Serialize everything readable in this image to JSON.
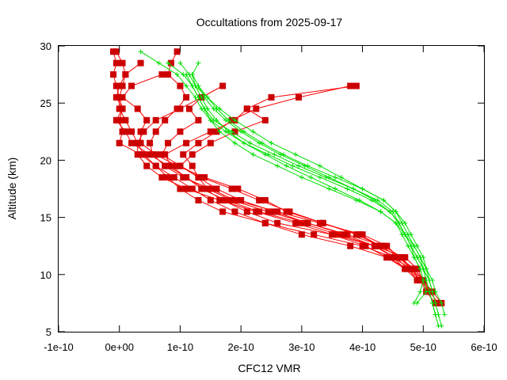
{
  "chart_data": {
    "type": "line",
    "title": "Occultations from 2025-09-17",
    "xlabel": "CFC12 VMR",
    "ylabel": "Altitude (km)",
    "xlim": [
      -1e-10,
      6e-10
    ],
    "ylim": [
      5,
      30
    ],
    "x_ticks": [
      -1e-10,
      0,
      1e-10,
      2e-10,
      3e-10,
      4e-10,
      5e-10,
      6e-10
    ],
    "x_tick_labels": [
      "-1e-10",
      "0e+00",
      "1e-10",
      "2e-10",
      "3e-10",
      "4e-10",
      "5e-10",
      "6e-10"
    ],
    "y_ticks": [
      5,
      10,
      15,
      20,
      25,
      30
    ],
    "y_tick_labels": [
      "5",
      "10",
      "15",
      "20",
      "25",
      "30"
    ],
    "grid": false,
    "legend": "none",
    "colors": {
      "measured": "#ff0000",
      "measured_marker": "#cc0000",
      "model": "#00e000"
    },
    "series": [
      {
        "style": "measured",
        "y": [
          29.5,
          28.5,
          27.5,
          26.5,
          25.5,
          24.5,
          23.5,
          22.5,
          21.5,
          20.5,
          19.5,
          18.5,
          17.5,
          16.5,
          15.5,
          14.5,
          13.5,
          12.5,
          11.5,
          10.5,
          9.5,
          8.5
        ],
        "x": [
          -5e-12,
          5e-12,
          1e-11,
          5e-12,
          0.0,
          0.0,
          1e-11,
          2e-11,
          3e-11,
          4e-11,
          6e-11,
          8e-11,
          1e-10,
          1.3e-10,
          1.7e-10,
          2.4e-10,
          3.2e-10,
          4e-10,
          4.5e-10,
          4.8e-10,
          4.95e-10,
          5.1e-10
        ]
      },
      {
        "style": "measured",
        "y": [
          29.5,
          28.5,
          27.5,
          26.5,
          25.5,
          24.5,
          23.5,
          22.5,
          21.5,
          20.5,
          19.5,
          18.5,
          17.5,
          16.5,
          15.5,
          14.5,
          13.5,
          12.5,
          11.5,
          10.5,
          9.5,
          8.5,
          7.5
        ],
        "x": [
          -1e-11,
          -5e-12,
          -1e-11,
          -5e-12,
          0.0,
          5e-12,
          -5e-12,
          1e-11,
          2e-11,
          5e-11,
          8e-11,
          1.1e-10,
          1.4e-10,
          1.7e-10,
          2.1e-10,
          2.6e-10,
          3.5e-10,
          4.2e-10,
          4.7e-10,
          4.9e-10,
          5e-10,
          5.15e-10,
          5.3e-10
        ]
      },
      {
        "style": "measured",
        "y": [
          28.5,
          27.5,
          26.5,
          25.5,
          24.5,
          23.5,
          22.5,
          21.5,
          20.5,
          19.5,
          18.5,
          17.5,
          16.5,
          15.5,
          14.5,
          13.5,
          12.5,
          11.5,
          10.5,
          9.5,
          8.5,
          7.5
        ],
        "x": [
          3.5e-11,
          1e-11,
          0.0,
          -5e-12,
          5e-12,
          0.0,
          5e-12,
          0.0,
          3.5e-11,
          6e-11,
          9e-11,
          1.2e-10,
          1.5e-10,
          1.9e-10,
          2.4e-10,
          3e-10,
          3.8e-10,
          4.4e-10,
          4.75e-10,
          4.95e-10,
          5.05e-10,
          5.2e-10
        ]
      },
      {
        "style": "measured",
        "y": [
          29.5,
          28.5,
          27.5,
          26.5,
          25.5,
          24.5,
          23.5,
          22.5,
          21.5,
          20.5,
          19.5,
          18.5,
          17.5,
          16.5,
          15.5,
          14.5,
          13.5,
          12.5,
          11.5,
          10.5,
          9.5,
          8.5,
          7.5
        ],
        "x": [
          9.5e-11,
          8.5e-11,
          8e-11,
          1e-10,
          1.1e-10,
          9.5e-11,
          7.5e-11,
          6e-11,
          5e-11,
          5.5e-11,
          7.5e-11,
          1.05e-10,
          1.5e-10,
          1.9e-10,
          2.6e-10,
          3.3e-10,
          4e-10,
          4.4e-10,
          4.6e-10,
          4.85e-10,
          5e-10,
          5.1e-10,
          5.25e-10
        ]
      },
      {
        "style": "measured",
        "y": [
          26.5,
          25.5,
          24.5,
          23.5,
          22.5,
          21.5,
          20.5,
          19.5,
          18.5,
          17.5,
          16.5,
          15.5,
          14.5,
          13.5,
          12.5,
          11.5,
          10.5,
          9.5
        ],
        "x": [
          3.9e-10,
          2.5e-10,
          2.1e-10,
          1.9e-10,
          1.5e-10,
          1.1e-10,
          7.5e-11,
          8.5e-11,
          1.1e-10,
          1.35e-10,
          1.75e-10,
          2.3e-10,
          3e-10,
          3.6e-10,
          4.2e-10,
          4.55e-10,
          4.75e-10,
          4.9e-10
        ]
      },
      {
        "style": "measured",
        "y": [
          26.5,
          25.5,
          24.5,
          23.5,
          22.5,
          21.5,
          20.5,
          19.5,
          18.5,
          17.5,
          16.5,
          15.5,
          14.5,
          13.5,
          12.5,
          11.5,
          10.5,
          9.5
        ],
        "x": [
          3.8e-10,
          2.95e-10,
          2.25e-10,
          1.85e-10,
          1.6e-10,
          1.3e-10,
          1.05e-10,
          1.2e-10,
          1.3e-10,
          1.45e-10,
          1.85e-10,
          2.45e-10,
          3.1e-10,
          3.75e-10,
          4.35e-10,
          4.65e-10,
          4.8e-10,
          5e-10
        ]
      },
      {
        "style": "measured",
        "y": [
          26.5,
          25.5,
          24.5,
          23.5,
          22.5,
          21.5,
          20.5,
          19.5,
          18.5,
          17.5,
          16.5,
          15.5,
          14.5,
          13.5,
          12.5,
          11.5,
          10.5
        ],
        "x": [
          1.7e-10,
          1.35e-10,
          1e-10,
          6e-11,
          4e-11,
          3e-11,
          3e-11,
          4.5e-11,
          7e-11,
          1.1e-10,
          1.65e-10,
          2.25e-10,
          2.9e-10,
          3.5e-10,
          4.05e-10,
          4.4e-10,
          4.7e-10
        ]
      },
      {
        "style": "measured",
        "y": [
          27.5,
          26.5,
          25.5,
          24.5,
          23.5,
          22.5,
          21.5,
          20.5,
          19.5,
          18.5,
          17.5,
          16.5,
          15.5,
          14.5,
          13.5,
          12.5,
          11.5,
          10.5,
          9.5
        ],
        "x": [
          7e-11,
          2e-11,
          5e-12,
          3e-11,
          4.5e-11,
          3.5e-11,
          3.5e-11,
          6e-11,
          9.5e-11,
          1.4e-10,
          1.95e-10,
          2.4e-10,
          2.75e-10,
          3.35e-10,
          3.9e-10,
          4.3e-10,
          4.6e-10,
          4.85e-10,
          5e-10
        ]
      },
      {
        "style": "measured",
        "y": [
          24.5,
          23.5,
          22.5,
          21.5,
          20.5,
          19.5,
          18.5,
          17.5,
          16.5,
          15.5,
          14.5,
          13.5,
          12.5,
          11.5,
          10.5,
          9.5
        ],
        "x": [
          2.1e-10,
          2.4e-10,
          1.9e-10,
          1.5e-10,
          1.2e-10,
          1e-10,
          1.3e-10,
          1.6e-10,
          2e-10,
          2.55e-10,
          3.1e-10,
          3.7e-10,
          4.2e-10,
          4.5e-10,
          4.7e-10,
          4.9e-10
        ]
      },
      {
        "style": "measured",
        "y": [
          25.5,
          24.5,
          23.5,
          22.5,
          21.5,
          20.5,
          19.5,
          18.5,
          17.5,
          16.5,
          15.5,
          14.5,
          13.5,
          12.5,
          11.5,
          10.5,
          9.5,
          8.5
        ],
        "x": [
          1.35e-10,
          1.15e-10,
          1.3e-10,
          1e-10,
          8e-11,
          7e-11,
          1e-10,
          1.35e-10,
          1.85e-10,
          2.3e-10,
          2.8e-10,
          3.35e-10,
          3.95e-10,
          4.3e-10,
          4.6e-10,
          4.8e-10,
          4.95e-10,
          5.15e-10
        ]
      },
      {
        "style": "model",
        "y": [
          29.5,
          28.5,
          27.5,
          26.5,
          25.5,
          24.5,
          23.5,
          22.5,
          21.5,
          20.5,
          19.5,
          18.5,
          17.5,
          16.5,
          15.5,
          14.5,
          13.5,
          12.5,
          11.5,
          10.5,
          9.5,
          8.5,
          7.5,
          6.5,
          5.5
        ],
        "x": [
          3.5e-11,
          6.5e-11,
          9.5e-11,
          1.1e-10,
          1.25e-10,
          1.35e-10,
          1.5e-10,
          1.75e-10,
          2.05e-10,
          2.45e-10,
          2.85e-10,
          3.3e-10,
          3.75e-10,
          4.15e-10,
          4.45e-10,
          4.6e-10,
          4.7e-10,
          4.8e-10,
          4.9e-10,
          5e-10,
          5.05e-10,
          5.1e-10,
          5.15e-10,
          5.2e-10,
          5.25e-10
        ]
      },
      {
        "style": "model",
        "y": [
          28.5,
          27.5,
          26.5,
          25.5,
          24.5,
          23.5,
          22.5,
          21.5,
          20.5,
          19.5,
          18.5,
          17.5,
          16.5,
          15.5,
          14.5,
          13.5,
          12.5,
          11.5,
          10.5,
          9.5,
          8.5,
          7.5,
          6.5
        ],
        "x": [
          8e-11,
          1.05e-10,
          1.2e-10,
          1.3e-10,
          1.4e-10,
          1.55e-10,
          1.85e-10,
          2.15e-10,
          2.55e-10,
          2.95e-10,
          3.4e-10,
          3.85e-10,
          4.25e-10,
          4.5e-10,
          4.6e-10,
          4.7e-10,
          4.85e-10,
          4.95e-10,
          5.05e-10,
          5.15e-10,
          5.2e-10,
          5.3e-10,
          5.35e-10
        ]
      },
      {
        "style": "model",
        "y": [
          28.5,
          27.5,
          26.5,
          25.5,
          24.5,
          23.5,
          22.5,
          21.5,
          20.5,
          19.5,
          18.5,
          17.5,
          16.5,
          15.5,
          14.5,
          13.5,
          12.5,
          11.5,
          10.5,
          9.5,
          8.5,
          7.5,
          6.5
        ],
        "x": [
          1e-10,
          1.15e-10,
          1.25e-10,
          1.45e-10,
          1.65e-10,
          1.9e-10,
          2.2e-10,
          2.5e-10,
          2.9e-10,
          3.3e-10,
          3.65e-10,
          4e-10,
          4.35e-10,
          4.55e-10,
          4.65e-10,
          4.75e-10,
          4.85e-10,
          4.95e-10,
          5e-10,
          5.05e-10,
          5.1e-10,
          5.15e-10,
          5.2e-10
        ]
      },
      {
        "style": "model",
        "y": [
          27.5,
          26.5,
          25.5,
          24.5,
          23.5,
          22.5,
          21.5,
          20.5,
          19.5,
          18.5,
          17.5,
          16.5,
          15.5,
          14.5,
          13.5,
          12.5,
          11.5,
          10.5,
          9.5,
          8.5,
          7.5
        ],
        "x": [
          1.2e-10,
          1.25e-10,
          1.35e-10,
          1.45e-10,
          1.6e-10,
          1.8e-10,
          2.05e-10,
          2.4e-10,
          2.75e-10,
          3.15e-10,
          3.55e-10,
          3.95e-10,
          4.3e-10,
          4.55e-10,
          4.7e-10,
          4.8e-10,
          4.85e-10,
          4.95e-10,
          5e-10,
          5.05e-10,
          4.9e-10
        ]
      },
      {
        "style": "model",
        "y": [
          26.5,
          25.5,
          24.5,
          23.5,
          22.5,
          21.5,
          20.5,
          19.5,
          18.5,
          17.5,
          16.5,
          15.5,
          14.5,
          13.5,
          12.5,
          11.5,
          10.5,
          9.5,
          8.5
        ],
        "x": [
          1.3e-10,
          1.4e-10,
          1.55e-10,
          1.75e-10,
          2e-10,
          2.3e-10,
          2.65e-10,
          3.05e-10,
          3.45e-10,
          3.85e-10,
          4.2e-10,
          4.45e-10,
          4.6e-10,
          4.7e-10,
          4.8e-10,
          4.9e-10,
          5e-10,
          5.1e-10,
          5.15e-10
        ]
      },
      {
        "style": "model",
        "y": [
          27.5,
          26.5,
          25.5,
          24.5,
          23.5,
          22.5,
          21.5,
          20.5,
          19.5,
          18.5,
          17.5,
          16.5,
          15.5,
          14.5,
          13.5,
          12.5,
          11.5,
          10.5,
          9.5,
          8.5,
          7.5
        ],
        "x": [
          1.1e-10,
          1.2e-10,
          1.3e-10,
          1.4e-10,
          1.5e-10,
          1.65e-10,
          1.9e-10,
          2.2e-10,
          2.6e-10,
          3e-10,
          3.45e-10,
          3.9e-10,
          4.3e-10,
          4.55e-10,
          4.65e-10,
          4.75e-10,
          4.85e-10,
          4.95e-10,
          5e-10,
          4.95e-10,
          4.85e-10
        ]
      },
      {
        "style": "model",
        "y": [
          28.5,
          27.5,
          26.5,
          25.5,
          24.5,
          23.5,
          22.5,
          21.5,
          20.5,
          19.5,
          18.5,
          17.5,
          16.5,
          15.5,
          14.5,
          13.5,
          12.5,
          11.5,
          10.5,
          9.5,
          8.5,
          7.5,
          6.5,
          5.5
        ],
        "x": [
          1.3e-10,
          1.2e-10,
          1.3e-10,
          1.45e-10,
          1.6e-10,
          1.8e-10,
          2.05e-10,
          2.35e-10,
          2.7e-10,
          3.1e-10,
          3.55e-10,
          4e-10,
          4.35e-10,
          4.55e-10,
          4.7e-10,
          4.8e-10,
          4.9e-10,
          5e-10,
          5.05e-10,
          5.1e-10,
          5.15e-10,
          5.2e-10,
          5.25e-10,
          5.3e-10
        ]
      }
    ]
  }
}
